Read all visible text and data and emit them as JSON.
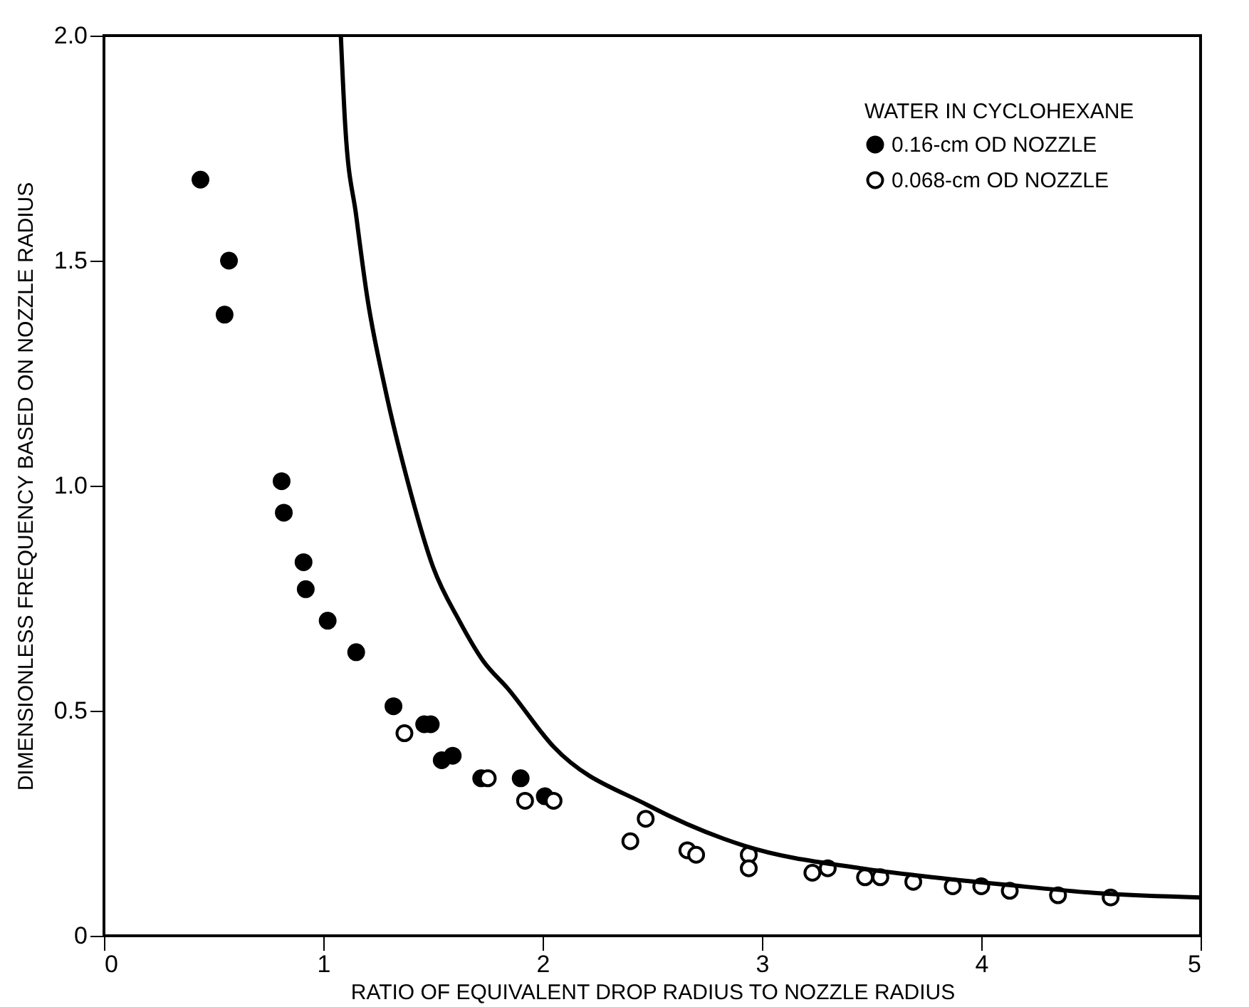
{
  "chart_data": {
    "type": "scatter",
    "xlabel": "RATIO OF EQUIVALENT DROP RADIUS TO NOZZLE RADIUS",
    "ylabel": "DIMENSIONLESS FREQUENCY BASED ON NOZZLE RADIUS",
    "legend_title": "WATER IN CYCLOHEXANE",
    "legend": "top right",
    "grid": false,
    "marker": "circle",
    "xlim": [
      0,
      5
    ],
    "xticks": [
      0,
      1,
      2,
      3,
      4,
      5
    ],
    "ylim": [
      0,
      2
    ],
    "yticks": [
      0,
      0.5,
      {
        "value": 1,
        "label": "1.0"
      },
      1.5,
      {
        "value": 2,
        "label": "2.0"
      }
    ],
    "series": [
      {
        "name": "0.16-cm OD NOZZLE",
        "color": "#000000",
        "x": [
          0.44,
          0.57,
          0.55,
          0.81,
          0.82,
          0.91,
          0.92,
          1.02,
          1.15,
          1.32,
          1.46,
          1.49,
          1.54,
          1.59,
          1.72,
          1.9,
          2.01
        ],
        "values": [
          1.68,
          1.5,
          1.38,
          1.01,
          0.94,
          0.83,
          0.77,
          0.7,
          0.63,
          0.51,
          0.47,
          0.47,
          0.39,
          0.4,
          0.35,
          0.35,
          0.31
        ]
      },
      {
        "name": "0.068-cm OD NOZZLE",
        "color": "#000000",
        "x": [
          1.37,
          1.75,
          1.92,
          2.05,
          2.47,
          2.4,
          2.66,
          2.7,
          2.94,
          2.94,
          3.23,
          3.3,
          3.47,
          3.54,
          3.69,
          3.87,
          4.0,
          4.13,
          4.35,
          4.59
        ],
        "values": [
          0.45,
          0.35,
          0.3,
          0.3,
          0.26,
          0.21,
          0.19,
          0.18,
          0.18,
          0.15,
          0.14,
          0.15,
          0.13,
          0.13,
          0.12,
          0.11,
          0.11,
          0.1,
          0.09,
          0.085
        ]
      },
      {
        "type": "line",
        "color": "#000000",
        "marker": "none",
        "x": [
          1.08,
          1.1,
          1.15,
          1.2,
          1.28,
          1.39,
          1.5,
          1.62,
          1.73,
          1.84,
          2.05,
          2.48,
          2.92,
          3.45,
          3.69,
          4.12,
          4.55,
          5.0
        ],
        "values": [
          2.0,
          1.8,
          1.6,
          1.42,
          1.22,
          1.0,
          0.82,
          0.7,
          0.61,
          0.55,
          0.42,
          0.29,
          0.2,
          0.15,
          0.135,
          0.113,
          0.094,
          0.085
        ]
      }
    ]
  }
}
